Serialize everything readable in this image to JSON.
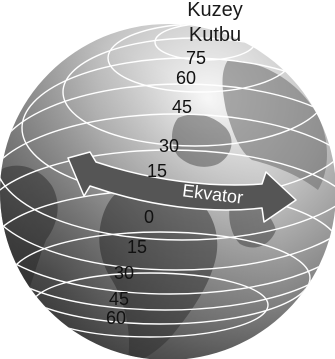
{
  "labels": {
    "pole_line1": "Kuzey",
    "pole_line2": "Kutbu",
    "equator": "Ekvator"
  },
  "latitudes": {
    "north": [
      "75",
      "60",
      "45",
      "30",
      "15"
    ],
    "zero": "0",
    "south": [
      "15",
      "30",
      "45",
      "60"
    ]
  },
  "colors": {
    "globe_light": "#f4f4f4",
    "globe_mid": "#9a9a9a",
    "globe_dark": "#2e2e2e",
    "land": "#3a3a3a",
    "latitude_line": "#ffffff",
    "arrow": "#555555"
  }
}
